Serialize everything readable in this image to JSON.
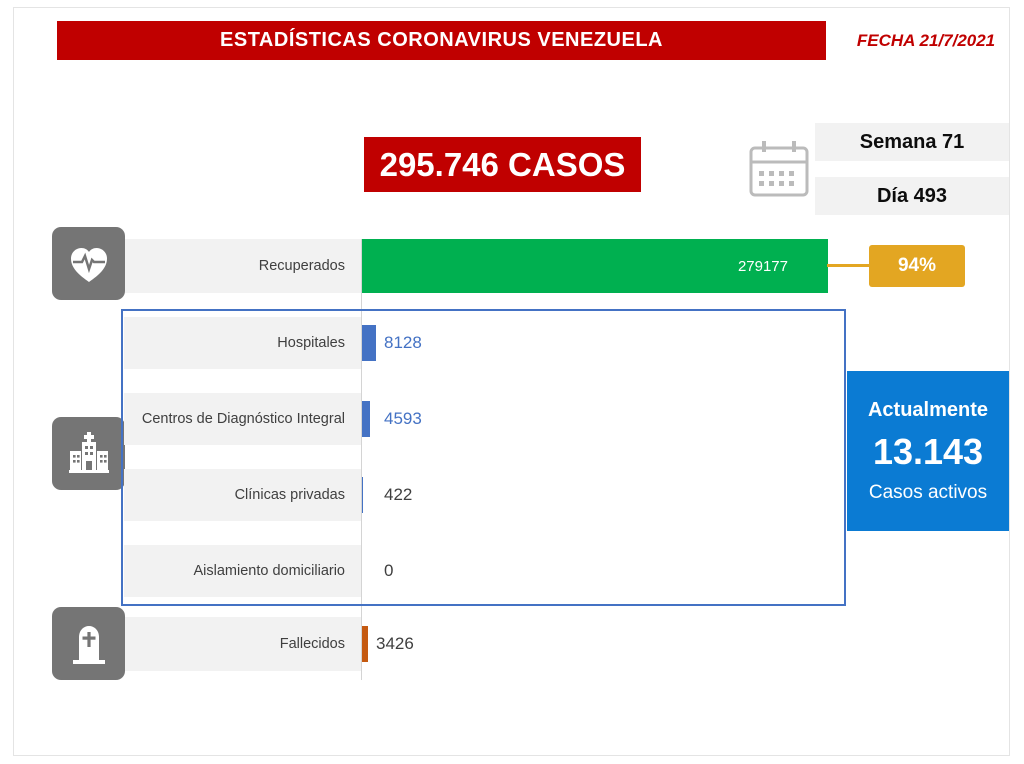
{
  "header": {
    "title": "ESTADÍSTICAS CORONAVIRUS VENEZUELA",
    "date": "FECHA 21/7/2021"
  },
  "total": {
    "text": "295.746 CASOS",
    "week": "Semana 71",
    "day": "Día 493"
  },
  "recovered": {
    "label": "Recuperados",
    "value_text": "279177",
    "percent": "94%"
  },
  "facilities": {
    "rows": [
      {
        "label": "Hospitales",
        "value_text": "8128"
      },
      {
        "label": "Centros de Diagnóstico Integral",
        "value_text": "4593"
      },
      {
        "label": "Clínicas privadas",
        "value_text": "422"
      },
      {
        "label": "Aislamiento domiciliario",
        "value_text": "0"
      }
    ]
  },
  "deaths": {
    "label": "Fallecidos",
    "value_text": "3426"
  },
  "active": {
    "title": "Actualmente",
    "value": "13.143",
    "subtitle": "Casos activos"
  },
  "colors": {
    "banner_red": "#C00000",
    "recovered_green": "#00B050",
    "percent_gold": "#E3A622",
    "facility_blue": "#4472C4",
    "deaths_orange": "#C55A11",
    "active_blue": "#0B7BD3",
    "icon_gray": "#757575",
    "label_bg": "#F2F2F2"
  },
  "chart_data": {
    "type": "bar",
    "orientation": "horizontal",
    "title": "295.746 CASOS",
    "categories": [
      "Recuperados",
      "Hospitales",
      "Centros de Diagnóstico Integral",
      "Clínicas privadas",
      "Aislamiento domiciliario",
      "Fallecidos"
    ],
    "values": [
      279177,
      8128,
      4593,
      422,
      0,
      3426
    ],
    "value_labels": [
      "279177",
      "8128",
      "4593",
      "422",
      "0",
      "3426"
    ],
    "bar_colors": [
      "#00B050",
      "#4472C4",
      "#4472C4",
      "#4472C4",
      "#4472C4",
      "#C55A11"
    ],
    "xlim": [
      0,
      279177
    ],
    "grid": false,
    "legend": "none",
    "annotations": [
      {
        "name": "total_cases",
        "text": "295.746 CASOS"
      },
      {
        "name": "recovered_percent",
        "text": "94%"
      },
      {
        "name": "active_cases",
        "text": "13.143"
      },
      {
        "name": "active_cases_label",
        "text": "Actualmente / Casos activos"
      },
      {
        "name": "week",
        "text": "Semana 71"
      },
      {
        "name": "day",
        "text": "Día 493"
      },
      {
        "name": "date",
        "text": "FECHA 21/7/2021"
      }
    ]
  }
}
